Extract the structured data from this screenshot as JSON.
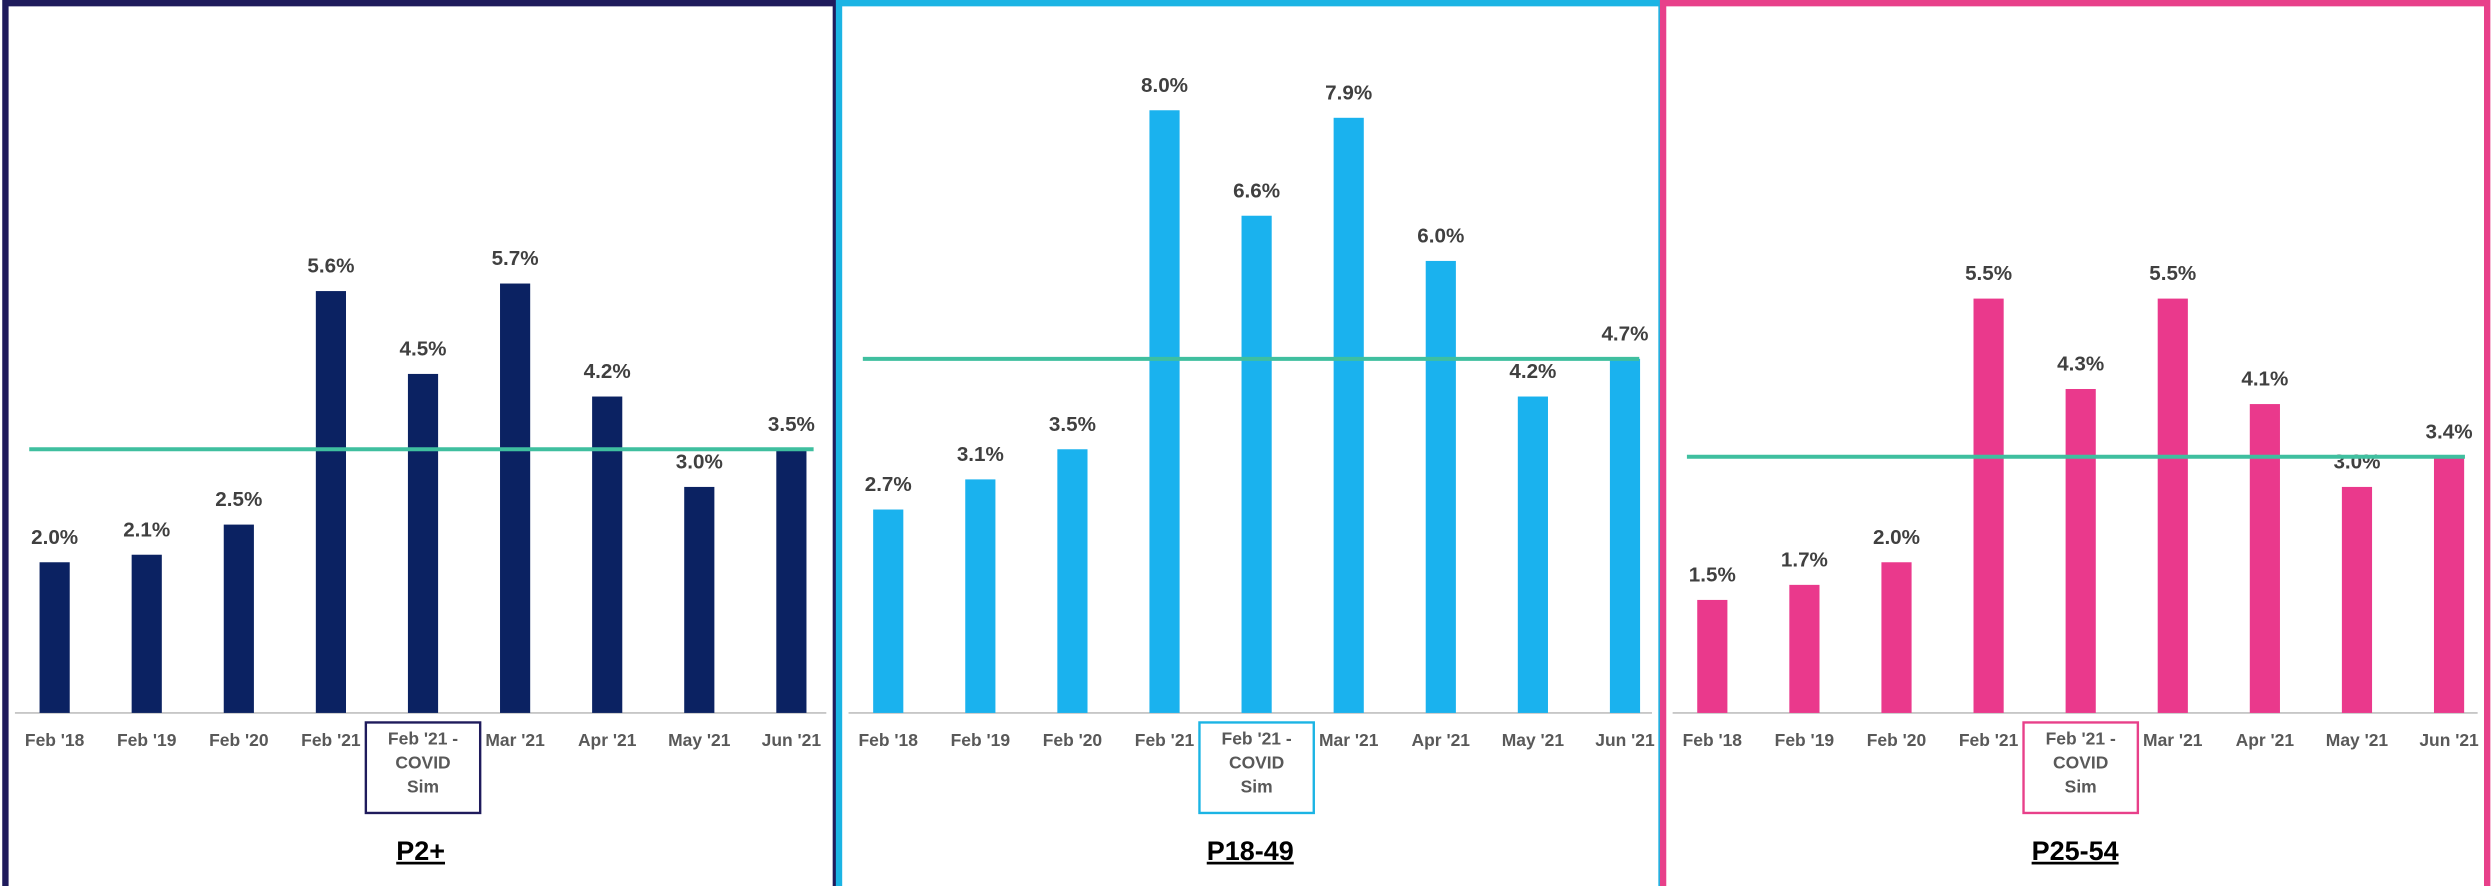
{
  "chart_data": [
    {
      "type": "bar",
      "title": "P2+",
      "border_color": "#1f1b5c",
      "color": "#0b2262",
      "reference_line": 3.5,
      "reference_color": "#3fbf9f",
      "highlight_category": 4,
      "categories": [
        "Feb '18",
        "Feb '19",
        "Feb '20",
        "Feb '21",
        "Feb '21 - COVID Sim",
        "Mar '21",
        "Apr '21",
        "May '21",
        "Jun '21"
      ],
      "values": [
        2.0,
        2.1,
        2.5,
        5.6,
        4.5,
        5.7,
        4.2,
        3.0,
        3.5
      ],
      "value_labels": [
        "2.0%",
        "2.1%",
        "2.5%",
        "5.6%",
        "4.5%",
        "5.7%",
        "4.2%",
        "3.0%",
        "3.5%"
      ],
      "ylim": [
        0,
        9
      ]
    },
    {
      "type": "bar",
      "title": "P18-49",
      "border_color": "#1bb4e4",
      "color": "#1ab2ee",
      "reference_line": 4.7,
      "reference_color": "#3fbf9f",
      "highlight_category": 4,
      "categories": [
        "Feb '18",
        "Feb '19",
        "Feb '20",
        "Feb '21",
        "Feb '21 - COVID Sim",
        "Mar '21",
        "Apr '21",
        "May '21",
        "Jun '21"
      ],
      "values": [
        2.7,
        3.1,
        3.5,
        8.0,
        6.6,
        7.9,
        6.0,
        4.2,
        4.7
      ],
      "value_labels": [
        "2.7%",
        "3.1%",
        "3.5%",
        "8.0%",
        "6.6%",
        "7.9%",
        "6.0%",
        "4.2%",
        "4.7%"
      ],
      "ylim": [
        0,
        9
      ]
    },
    {
      "type": "bar",
      "title": "P25-54",
      "border_color": "#e8408a",
      "color": "#ea398c",
      "reference_line": 3.4,
      "reference_color": "#3fbf9f",
      "highlight_category": 4,
      "categories": [
        "Feb '18",
        "Feb '19",
        "Feb '20",
        "Feb '21",
        "Feb '21 - COVID Sim",
        "Mar '21",
        "Apr '21",
        "May '21",
        "Jun '21"
      ],
      "values": [
        1.5,
        1.7,
        2.0,
        5.5,
        4.3,
        5.5,
        4.1,
        3.0,
        3.4
      ],
      "value_labels": [
        "1.5%",
        "1.7%",
        "2.0%",
        "5.5%",
        "4.3%",
        "5.5%",
        "4.1%",
        "3.0%",
        "3.4%"
      ],
      "ylim": [
        0,
        9
      ]
    }
  ]
}
